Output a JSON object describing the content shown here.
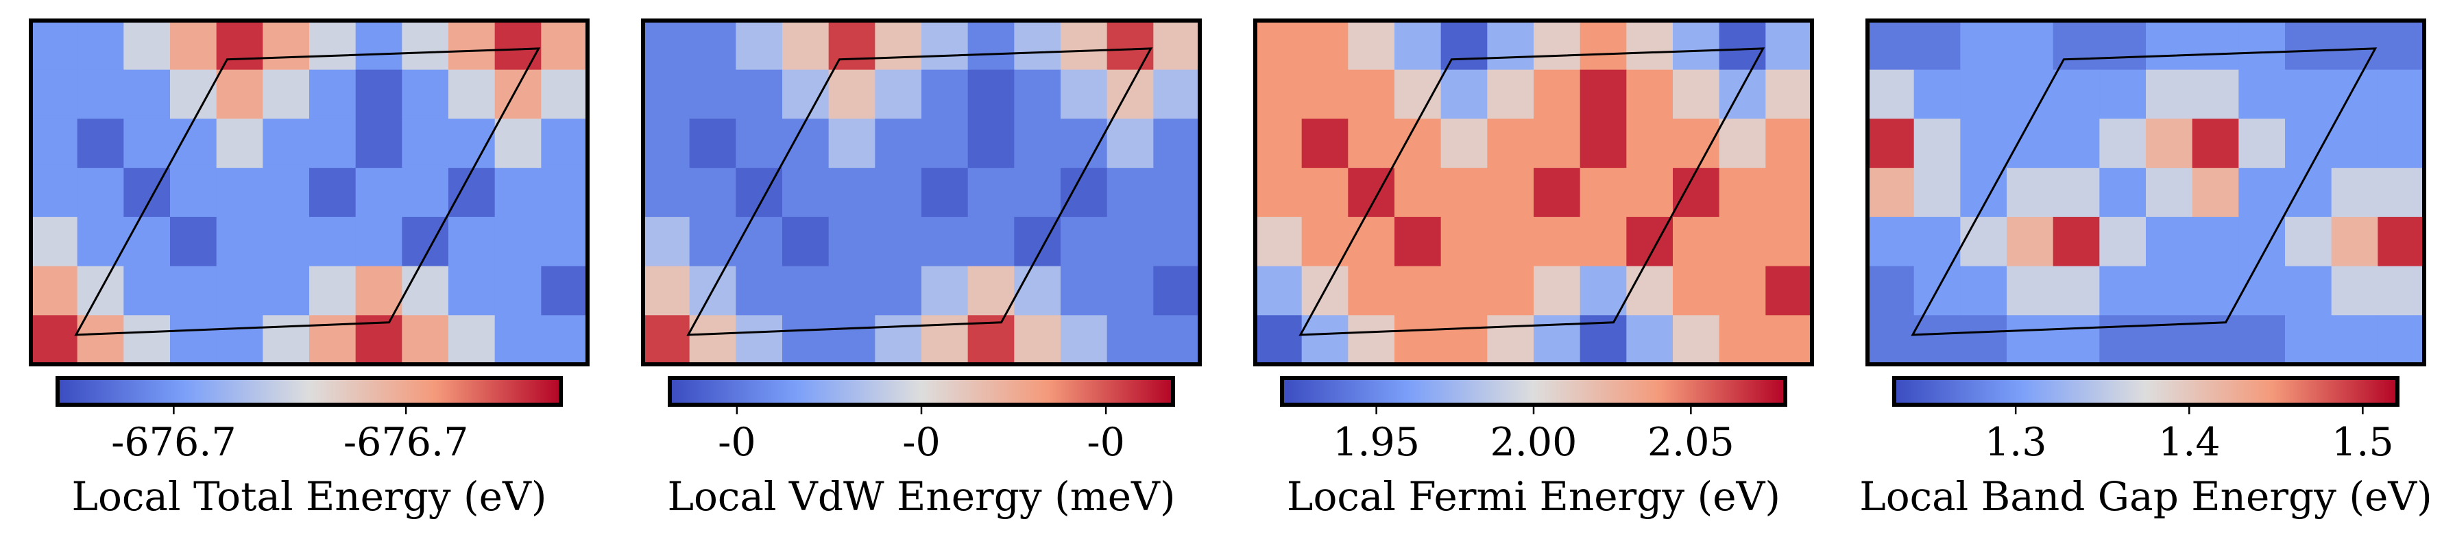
{
  "chart_data": [
    {
      "type": "heatmap",
      "colorbar_label": "Local Total Energy (eV)",
      "zlim": [
        -676.75,
        -676.62
      ],
      "zticks": [
        {
          "value": -676.72,
          "label": "-676.7"
        },
        {
          "value": -676.66,
          "label": "-676.7"
        }
      ],
      "z": [
        [
          -676.72,
          -676.72,
          -676.69,
          -676.66,
          -676.63,
          -676.66,
          -676.69,
          -676.72,
          -676.69,
          -676.66,
          -676.63,
          -676.66
        ],
        [
          -676.72,
          -676.72,
          -676.72,
          -676.69,
          -676.66,
          -676.69,
          -676.72,
          -676.74,
          -676.72,
          -676.69,
          -676.66,
          -676.69
        ],
        [
          -676.72,
          -676.74,
          -676.72,
          -676.72,
          -676.69,
          -676.72,
          -676.72,
          -676.74,
          -676.72,
          -676.72,
          -676.69,
          -676.72
        ],
        [
          -676.72,
          -676.72,
          -676.74,
          -676.72,
          -676.72,
          -676.72,
          -676.74,
          -676.72,
          -676.72,
          -676.74,
          -676.72,
          -676.72
        ],
        [
          -676.69,
          -676.72,
          -676.72,
          -676.74,
          -676.72,
          -676.72,
          -676.72,
          -676.72,
          -676.74,
          -676.72,
          -676.72,
          -676.72
        ],
        [
          -676.66,
          -676.69,
          -676.72,
          -676.72,
          -676.72,
          -676.72,
          -676.69,
          -676.66,
          -676.69,
          -676.72,
          -676.72,
          -676.74
        ],
        [
          -676.63,
          -676.66,
          -676.69,
          -676.72,
          -676.72,
          -676.69,
          -676.66,
          -676.63,
          -676.66,
          -676.69,
          -676.72,
          -676.72
        ]
      ]
    },
    {
      "type": "heatmap",
      "colorbar_label": "Local VdW Energy (meV)",
      "zlim": [
        -0.35,
        -0.05
      ],
      "zticks": [
        {
          "value": -0.31,
          "label": "-0"
        },
        {
          "value": -0.2,
          "label": "-0"
        },
        {
          "value": -0.09,
          "label": "-0"
        }
      ],
      "z": [
        [
          -0.3,
          -0.3,
          -0.24,
          -0.17,
          -0.08,
          -0.17,
          -0.24,
          -0.3,
          -0.24,
          -0.17,
          -0.08,
          -0.17
        ],
        [
          -0.3,
          -0.3,
          -0.3,
          -0.24,
          -0.17,
          -0.24,
          -0.3,
          -0.33,
          -0.3,
          -0.24,
          -0.17,
          -0.24
        ],
        [
          -0.3,
          -0.33,
          -0.3,
          -0.3,
          -0.24,
          -0.3,
          -0.3,
          -0.33,
          -0.3,
          -0.3,
          -0.24,
          -0.3
        ],
        [
          -0.3,
          -0.3,
          -0.33,
          -0.3,
          -0.3,
          -0.3,
          -0.33,
          -0.3,
          -0.3,
          -0.33,
          -0.3,
          -0.3
        ],
        [
          -0.24,
          -0.3,
          -0.3,
          -0.33,
          -0.3,
          -0.3,
          -0.3,
          -0.3,
          -0.33,
          -0.3,
          -0.3,
          -0.3
        ],
        [
          -0.17,
          -0.24,
          -0.3,
          -0.3,
          -0.3,
          -0.3,
          -0.24,
          -0.17,
          -0.24,
          -0.3,
          -0.3,
          -0.33
        ],
        [
          -0.08,
          -0.17,
          -0.24,
          -0.3,
          -0.3,
          -0.24,
          -0.17,
          -0.08,
          -0.17,
          -0.24,
          -0.3,
          -0.3
        ]
      ]
    },
    {
      "type": "heatmap",
      "colorbar_label": "Local Fermi Energy (eV)",
      "zlim": [
        1.92,
        2.08
      ],
      "zticks": [
        1.95,
        {
          "value": 2,
          "label": "2.00"
        },
        2.05
      ],
      "z": [
        [
          2.04,
          2.04,
          2.01,
          1.97,
          1.93,
          1.97,
          2.01,
          2.04,
          2.01,
          1.97,
          1.93,
          1.97
        ],
        [
          2.04,
          2.04,
          2.04,
          2.01,
          1.97,
          2.01,
          2.04,
          2.07,
          2.04,
          2.01,
          1.97,
          2.01
        ],
        [
          2.04,
          2.07,
          2.04,
          2.04,
          2.01,
          2.04,
          2.04,
          2.07,
          2.04,
          2.04,
          2.01,
          2.04
        ],
        [
          2.04,
          2.04,
          2.07,
          2.04,
          2.04,
          2.04,
          2.07,
          2.04,
          2.04,
          2.07,
          2.04,
          2.04
        ],
        [
          2.01,
          2.04,
          2.04,
          2.07,
          2.04,
          2.04,
          2.04,
          2.04,
          2.07,
          2.04,
          2.04,
          2.04
        ],
        [
          1.97,
          2.01,
          2.04,
          2.04,
          2.04,
          2.04,
          2.01,
          1.97,
          2.01,
          2.04,
          2.04,
          2.07
        ],
        [
          1.93,
          1.97,
          2.01,
          2.04,
          2.04,
          2.01,
          1.97,
          1.93,
          1.97,
          2.01,
          2.04,
          2.04
        ]
      ]
    },
    {
      "type": "heatmap",
      "colorbar_label": "Local Band Gap Energy (eV)",
      "zlim": [
        1.23,
        1.52
      ],
      "zticks": [
        1.3,
        1.4,
        1.5
      ],
      "z": [
        [
          1.27,
          1.27,
          1.3,
          1.3,
          1.27,
          1.27,
          1.3,
          1.3,
          1.3,
          1.27,
          1.27,
          1.27
        ],
        [
          1.36,
          1.3,
          1.3,
          1.3,
          1.3,
          1.3,
          1.36,
          1.36,
          1.3,
          1.3,
          1.3,
          1.3
        ],
        [
          1.5,
          1.36,
          1.3,
          1.3,
          1.3,
          1.36,
          1.42,
          1.5,
          1.36,
          1.3,
          1.3,
          1.3
        ],
        [
          1.42,
          1.36,
          1.3,
          1.36,
          1.36,
          1.3,
          1.36,
          1.42,
          1.3,
          1.3,
          1.36,
          1.36
        ],
        [
          1.3,
          1.3,
          1.36,
          1.42,
          1.5,
          1.36,
          1.3,
          1.3,
          1.3,
          1.36,
          1.42,
          1.5
        ],
        [
          1.27,
          1.3,
          1.3,
          1.36,
          1.36,
          1.3,
          1.3,
          1.3,
          1.3,
          1.3,
          1.36,
          1.36
        ],
        [
          1.27,
          1.27,
          1.27,
          1.3,
          1.3,
          1.27,
          1.27,
          1.27,
          1.27,
          1.3,
          1.3,
          1.3
        ]
      ]
    }
  ]
}
